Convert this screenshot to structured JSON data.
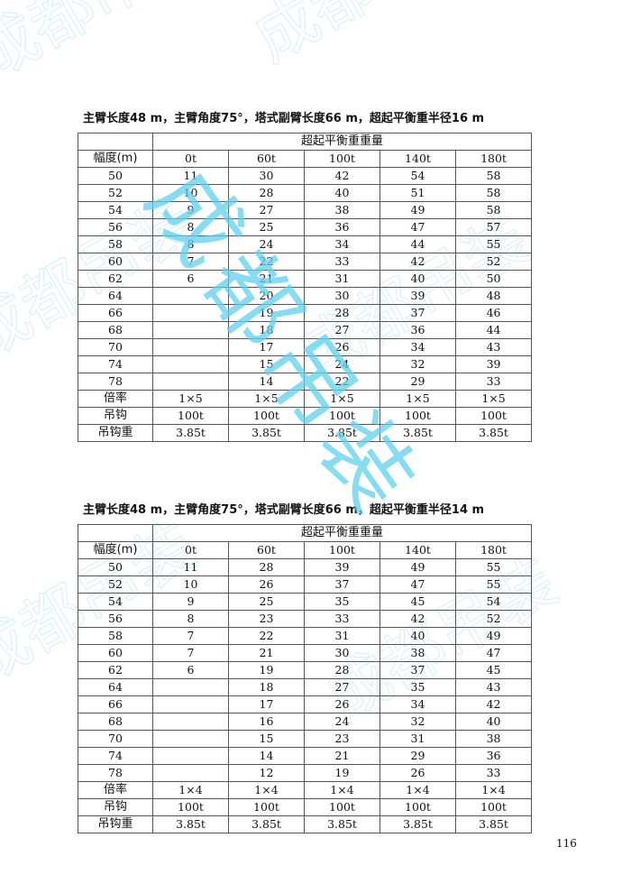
{
  "watermark": {
    "text": "成都吊装",
    "color": "#5fd0ee"
  },
  "tables": [
    {
      "title": "主臂长度48 m，主臂角度75°，塔式副臂长度66 m，超起平衡重半径16 m",
      "group_header": "超起平衡重重量",
      "radius_header": "幅度(m)",
      "columns": [
        "0t",
        "60t",
        "100t",
        "140t",
        "180t"
      ],
      "rows": [
        [
          "50",
          "11",
          "30",
          "42",
          "54",
          "58"
        ],
        [
          "52",
          "10",
          "28",
          "40",
          "51",
          "58"
        ],
        [
          "54",
          "9",
          "27",
          "38",
          "49",
          "58"
        ],
        [
          "56",
          "8",
          "25",
          "36",
          "47",
          "57"
        ],
        [
          "58",
          "8",
          "24",
          "34",
          "44",
          "55"
        ],
        [
          "60",
          "7",
          "22",
          "33",
          "42",
          "52"
        ],
        [
          "62",
          "6",
          "21",
          "31",
          "40",
          "50"
        ],
        [
          "64",
          "",
          "20",
          "30",
          "39",
          "48"
        ],
        [
          "66",
          "",
          "19",
          "28",
          "37",
          "46"
        ],
        [
          "68",
          "",
          "18",
          "27",
          "36",
          "44"
        ],
        [
          "70",
          "",
          "17",
          "26",
          "34",
          "43"
        ],
        [
          "74",
          "",
          "15",
          "24",
          "32",
          "39"
        ],
        [
          "78",
          "",
          "14",
          "22",
          "29",
          "33"
        ]
      ],
      "footer_rows": [
        [
          "倍率",
          "1×5",
          "1×5",
          "1×5",
          "1×5",
          "1×5"
        ],
        [
          "吊钩",
          "100t",
          "100t",
          "100t",
          "100t",
          "100t"
        ],
        [
          "吊钩重",
          "3.85t",
          "3.85t",
          "3.85t",
          "3.85t",
          "3.85t"
        ]
      ]
    },
    {
      "title": "主臂长度48 m，主臂角度75°，塔式副臂长度66 m，超起平衡重半径14 m",
      "group_header": "超起平衡重重量",
      "radius_header": "幅度(m)",
      "columns": [
        "0t",
        "60t",
        "100t",
        "140t",
        "180t"
      ],
      "rows": [
        [
          "50",
          "11",
          "28",
          "39",
          "49",
          "55"
        ],
        [
          "52",
          "10",
          "26",
          "37",
          "47",
          "55"
        ],
        [
          "54",
          "9",
          "25",
          "35",
          "45",
          "54"
        ],
        [
          "56",
          "8",
          "23",
          "33",
          "42",
          "52"
        ],
        [
          "58",
          "7",
          "22",
          "31",
          "40",
          "49"
        ],
        [
          "60",
          "7",
          "21",
          "30",
          "38",
          "47"
        ],
        [
          "62",
          "6",
          "19",
          "28",
          "37",
          "45"
        ],
        [
          "64",
          "",
          "18",
          "27",
          "35",
          "43"
        ],
        [
          "66",
          "",
          "17",
          "26",
          "34",
          "42"
        ],
        [
          "68",
          "",
          "16",
          "24",
          "32",
          "40"
        ],
        [
          "70",
          "",
          "15",
          "23",
          "31",
          "38"
        ],
        [
          "74",
          "",
          "14",
          "21",
          "29",
          "36"
        ],
        [
          "78",
          "",
          "12",
          "19",
          "26",
          "33"
        ]
      ],
      "footer_rows": [
        [
          "倍率",
          "1×4",
          "1×4",
          "1×4",
          "1×4",
          "1×4"
        ],
        [
          "吊钩",
          "100t",
          "100t",
          "100t",
          "100t",
          "100t"
        ],
        [
          "吊钩重",
          "3.85t",
          "3.85t",
          "3.85t",
          "3.85t",
          "3.85t"
        ]
      ]
    }
  ],
  "page_number": "116"
}
